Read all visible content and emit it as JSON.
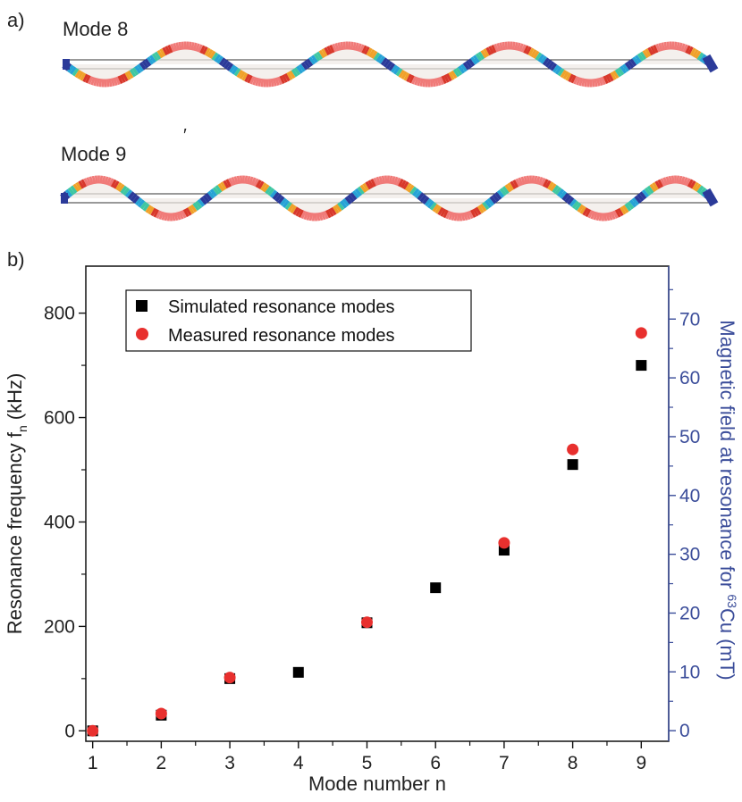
{
  "panel_a": {
    "label": "a)",
    "modes": [
      {
        "label": "Mode 8",
        "half_waves": 8
      },
      {
        "label": "Mode 9",
        "half_waves": 9
      }
    ],
    "colormap": [
      "#2b3a99",
      "#26a3d6",
      "#3fc7a2",
      "#f0a12a",
      "#d8382b",
      "#f07a78"
    ]
  },
  "chart_data": {
    "panel_label": "b)",
    "type": "scatter",
    "xlabel": "Mode number n",
    "ylabel_main": "Resonance frequency f",
    "ylabel_sub": "n",
    "ylabel_unit": "(kHz)",
    "y2label_main": "Magnetic field at resonance for ",
    "y2label_sup": "63",
    "y2label_unit": "Cu (mT)",
    "xlim": [
      0.9,
      9.4
    ],
    "ylim": [
      -20,
      890
    ],
    "y2lim": [
      -1.8,
      79
    ],
    "xticks": [
      1,
      2,
      3,
      4,
      5,
      6,
      7,
      8,
      9
    ],
    "yticks": [
      0,
      200,
      400,
      600,
      800
    ],
    "y2ticks": [
      0,
      10,
      20,
      30,
      40,
      50,
      60,
      70
    ],
    "legend_position": "top-left",
    "series": [
      {
        "name": "Simulated resonance modes",
        "marker": "square",
        "color": "#000000",
        "x": [
          1,
          2,
          3,
          4,
          5,
          6,
          7,
          8,
          9
        ],
        "y": [
          0,
          30,
          100,
          112,
          207,
          274,
          346,
          510,
          700
        ]
      },
      {
        "name": "Measured resonance modes",
        "marker": "circle",
        "color": "#e8302e",
        "x": [
          1,
          2,
          3,
          5,
          7,
          8,
          9
        ],
        "y": [
          0,
          33,
          102,
          208,
          360,
          539,
          762
        ]
      }
    ]
  }
}
